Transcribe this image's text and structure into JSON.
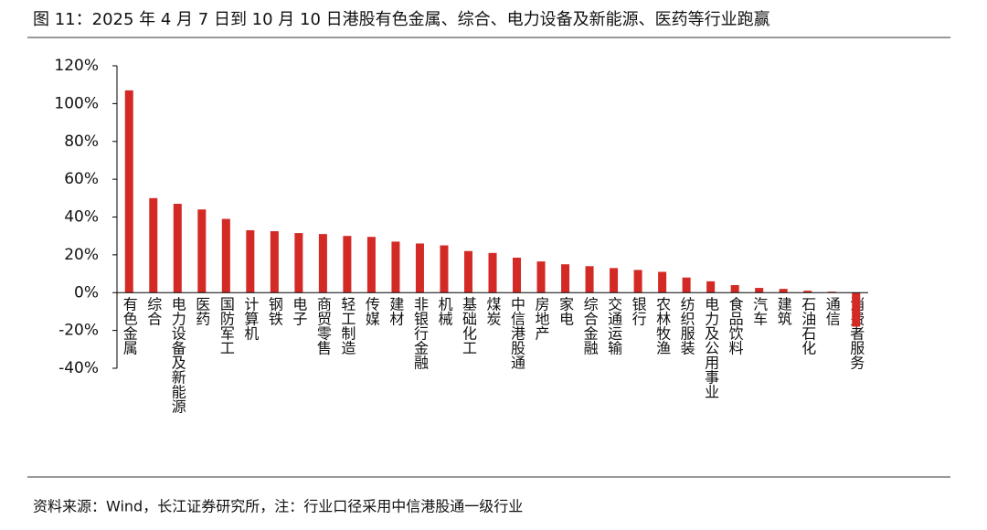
{
  "chart_data": {
    "type": "bar",
    "title": "图 11：2025 年 4 月 7 日到 10 月 10 日港股有色金属、综合、电力设备及新能源、医药等行业跑赢",
    "source": "资料来源：Wind，长江证券研究所，注：行业口径采用中信港股通一级行业",
    "categories": [
      "有色金属",
      "综合",
      "电力设备及新能源",
      "医药",
      "国防军工",
      "计算机",
      "钢铁",
      "电子",
      "商贸零售",
      "轻工制造",
      "传媒",
      "建材",
      "非银行金融",
      "机械",
      "基础化工",
      "煤炭",
      "中信港股通",
      "房地产",
      "家电",
      "综合金融",
      "交通运输",
      "银行",
      "农林牧渔",
      "纺织服装",
      "电力及公用事业",
      "食品饮料",
      "汽车",
      "建筑",
      "石油石化",
      "通信",
      "消费者服务"
    ],
    "values": [
      107,
      50,
      47,
      44,
      39,
      33,
      32.5,
      31.5,
      31,
      30,
      29.5,
      27,
      26,
      25,
      22,
      21,
      18.5,
      16.5,
      15,
      14,
      13,
      12,
      11,
      8,
      6,
      4,
      2.5,
      2,
      1,
      0.5,
      -18
    ],
    "color": "#d42a25",
    "ylim": [
      -40,
      120
    ],
    "yticks": [
      {
        "value": -40,
        "label": "-40%"
      },
      {
        "value": -20,
        "label": "-20%"
      },
      {
        "value": 0,
        "label": "0%"
      },
      {
        "value": 20,
        "label": "20%"
      },
      {
        "value": 40,
        "label": "40%"
      },
      {
        "value": 60,
        "label": "60%"
      },
      {
        "value": 80,
        "label": "80%"
      },
      {
        "value": 100,
        "label": "100%"
      },
      {
        "value": 120,
        "label": "120%"
      }
    ],
    "grid": false
  }
}
